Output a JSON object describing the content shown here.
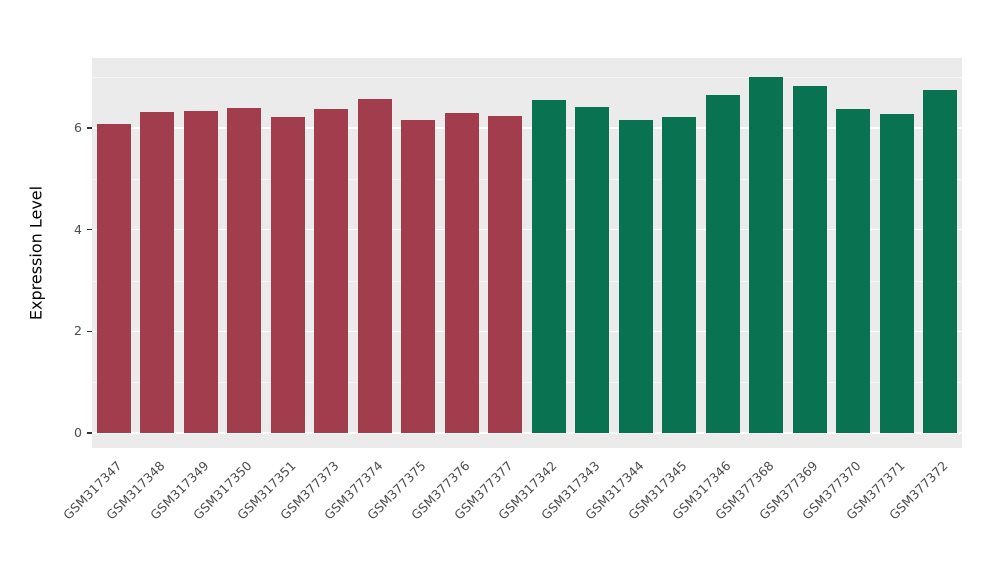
{
  "chart_data": {
    "type": "bar",
    "title": "",
    "xlabel": "",
    "ylabel": "Expression Level",
    "categories": [
      "GSM317347",
      "GSM317348",
      "GSM317349",
      "GSM317350",
      "GSM317351",
      "GSM377373",
      "GSM377374",
      "GSM377375",
      "GSM377376",
      "GSM377377",
      "GSM317342",
      "GSM317343",
      "GSM317344",
      "GSM317345",
      "GSM317346",
      "GSM377368",
      "GSM377369",
      "GSM377370",
      "GSM377371",
      "GSM377372"
    ],
    "values": [
      6.08,
      6.32,
      6.34,
      6.4,
      6.22,
      6.38,
      6.57,
      6.16,
      6.29,
      6.24,
      6.56,
      6.41,
      6.16,
      6.21,
      6.65,
      7.0,
      6.83,
      6.37,
      6.27,
      6.74
    ],
    "groups": [
      "group1",
      "group1",
      "group1",
      "group1",
      "group1",
      "group1",
      "group1",
      "group1",
      "group1",
      "group1",
      "group2",
      "group2",
      "group2",
      "group2",
      "group2",
      "group2",
      "group2",
      "group2",
      "group2",
      "group2"
    ],
    "palette": {
      "group1": "#A13D4D",
      "group2": "#097351"
    },
    "panel_background": "#EBEBEB",
    "gridline_color": "#FFFFFF",
    "ylim": [
      0,
      7.2
    ],
    "yticks": [
      0,
      2,
      4,
      6
    ],
    "yticks_minor": [
      1,
      3,
      5,
      7
    ],
    "legend": "none",
    "grid": "on"
  }
}
